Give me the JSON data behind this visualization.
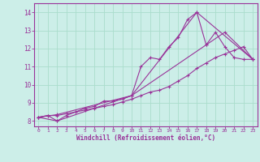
{
  "title": "",
  "xlabel": "Windchill (Refroidissement éolien,°C)",
  "ylabel": "",
  "background_color": "#cceee8",
  "grid_color": "#aaddcc",
  "line_color": "#993399",
  "xlim": [
    -0.5,
    23.5
  ],
  "ylim": [
    7.7,
    14.5
  ],
  "xticks": [
    0,
    1,
    2,
    3,
    4,
    5,
    6,
    7,
    8,
    9,
    10,
    11,
    12,
    13,
    14,
    15,
    16,
    17,
    18,
    19,
    20,
    21,
    22,
    23
  ],
  "yticks": [
    8,
    9,
    10,
    11,
    12,
    13,
    14
  ],
  "line1_x": [
    0,
    1,
    2,
    3,
    4,
    5,
    6,
    7,
    8,
    9,
    10,
    11,
    12,
    13,
    14,
    15,
    16,
    17,
    18,
    19,
    20,
    21,
    22,
    23
  ],
  "line1_y": [
    8.2,
    8.3,
    8.0,
    8.3,
    8.5,
    8.7,
    8.8,
    9.1,
    9.1,
    9.2,
    9.4,
    11.0,
    11.5,
    11.4,
    12.1,
    12.6,
    13.6,
    14.0,
    12.2,
    12.9,
    12.1,
    11.5,
    11.4,
    11.4
  ],
  "line2_x": [
    0,
    1,
    2,
    3,
    4,
    5,
    6,
    7,
    8,
    9,
    10,
    11,
    12,
    13,
    14,
    15,
    16,
    17,
    18,
    19,
    20,
    21,
    22,
    23
  ],
  "line2_y": [
    8.2,
    8.3,
    8.3,
    8.4,
    8.5,
    8.6,
    8.7,
    8.8,
    8.9,
    9.05,
    9.2,
    9.4,
    9.6,
    9.7,
    9.9,
    10.2,
    10.5,
    10.9,
    11.2,
    11.5,
    11.7,
    11.9,
    12.1,
    11.4
  ],
  "line3_x": [
    0,
    2,
    10,
    17,
    23
  ],
  "line3_y": [
    8.2,
    8.0,
    9.4,
    14.0,
    11.4
  ],
  "line4_x": [
    0,
    2,
    10,
    18,
    20,
    23
  ],
  "line4_y": [
    8.2,
    8.35,
    9.4,
    12.2,
    12.9,
    11.4
  ]
}
